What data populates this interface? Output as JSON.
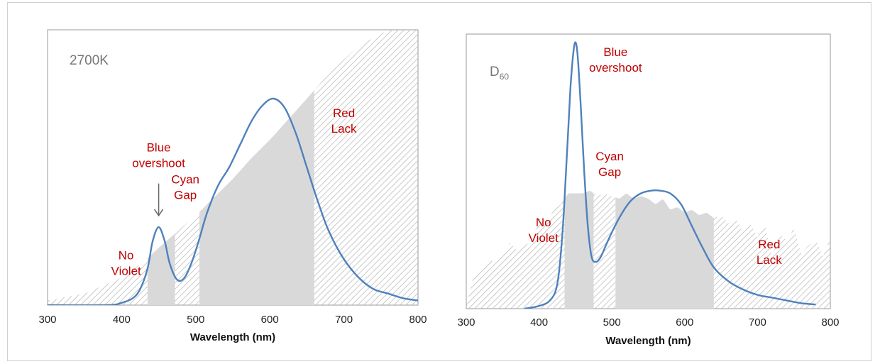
{
  "colors": {
    "curve": "#4f81bd",
    "fill": "#d9d9d9",
    "hatch": "#bcbcbc",
    "annotation": "#c00000",
    "title": "#808080",
    "arrow": "#666666"
  },
  "chart_data": [
    {
      "type": "area",
      "title": "2700K",
      "subtitle": "",
      "xlabel": "Wavelength (nm)",
      "ylabel": "",
      "xlim": [
        300,
        800
      ],
      "ylim": [
        0,
        1.2
      ],
      "xticks": [
        "300",
        "400",
        "500",
        "600",
        "700",
        "800"
      ],
      "grid": false,
      "reference_spectrum": {
        "x": [
          300,
          350,
          400,
          430,
          450,
          475,
          500,
          525,
          550,
          575,
          600,
          625,
          650,
          680,
          720,
          760,
          800
        ],
        "y": [
          0.02,
          0.05,
          0.12,
          0.19,
          0.25,
          0.32,
          0.39,
          0.47,
          0.55,
          0.64,
          0.72,
          0.81,
          0.9,
          1.01,
          1.13,
          1.2,
          1.2
        ]
      },
      "test_spectrum": {
        "x": [
          300,
          380,
          400,
          415,
          425,
          435,
          442,
          450,
          458,
          465,
          475,
          485,
          495,
          505,
          515,
          530,
          545,
          560,
          575,
          590,
          605,
          620,
          635,
          650,
          665,
          680,
          700,
          720,
          740,
          760,
          780,
          800
        ],
        "y": [
          0.0,
          0.0,
          0.01,
          0.03,
          0.07,
          0.16,
          0.28,
          0.34,
          0.28,
          0.18,
          0.11,
          0.12,
          0.19,
          0.29,
          0.4,
          0.52,
          0.6,
          0.7,
          0.8,
          0.87,
          0.9,
          0.86,
          0.75,
          0.6,
          0.45,
          0.32,
          0.2,
          0.12,
          0.07,
          0.05,
          0.03,
          0.02
        ]
      },
      "shaded_regions": [
        {
          "from": 300,
          "to": 435,
          "style": "hatched"
        },
        {
          "from": 435,
          "to": 472,
          "style": "solid"
        },
        {
          "from": 472,
          "to": 505,
          "style": "hatched"
        },
        {
          "from": 505,
          "to": 660,
          "style": "solid"
        },
        {
          "from": 660,
          "to": 800,
          "style": "hatched"
        }
      ],
      "annotations": [
        {
          "lines": [
            "Blue",
            "overshoot"
          ],
          "x": 450,
          "y": 0.67
        },
        {
          "lines": [
            "Cyan",
            "Gap"
          ],
          "x": 486,
          "y": 0.53
        },
        {
          "lines": [
            "No",
            "Violet"
          ],
          "x": 406,
          "y": 0.2
        },
        {
          "lines": [
            "Red",
            "Lack"
          ],
          "x": 700,
          "y": 0.82
        }
      ],
      "arrow": {
        "from": [
          450,
          0.53
        ],
        "to": [
          450,
          0.39
        ]
      }
    },
    {
      "type": "area",
      "title": "D",
      "title_subscript": "60",
      "subtitle": "",
      "xlabel": "Wavelength (nm)",
      "ylabel": "",
      "xlim": [
        300,
        800
      ],
      "ylim": [
        0,
        1.0
      ],
      "xticks": [
        "300",
        "400",
        "500",
        "600",
        "700",
        "800"
      ],
      "grid": false,
      "reference_spectrum": {
        "x": [
          300,
          310,
          320,
          330,
          340,
          350,
          360,
          370,
          380,
          390,
          400,
          410,
          420,
          430,
          440,
          450,
          460,
          470,
          480,
          490,
          500,
          510,
          520,
          530,
          540,
          550,
          560,
          570,
          580,
          590,
          600,
          610,
          620,
          630,
          640,
          650,
          660,
          670,
          680,
          690,
          700,
          710,
          720,
          730,
          740,
          750,
          760,
          770,
          780,
          790,
          800
        ],
        "y": [
          0.01,
          0.12,
          0.14,
          0.18,
          0.17,
          0.2,
          0.24,
          0.21,
          0.24,
          0.23,
          0.33,
          0.31,
          0.36,
          0.38,
          0.42,
          0.42,
          0.42,
          0.43,
          0.41,
          0.42,
          0.41,
          0.4,
          0.42,
          0.4,
          0.41,
          0.4,
          0.38,
          0.4,
          0.36,
          0.37,
          0.35,
          0.36,
          0.34,
          0.35,
          0.33,
          0.34,
          0.31,
          0.33,
          0.28,
          0.31,
          0.26,
          0.31,
          0.19,
          0.27,
          0.25,
          0.29,
          0.2,
          0.23,
          0.25,
          0.19,
          0.26
        ]
      },
      "test_spectrum": {
        "x": [
          380,
          400,
          415,
          425,
          432,
          438,
          443,
          447,
          450,
          453,
          457,
          462,
          467,
          472,
          478,
          485,
          495,
          510,
          525,
          540,
          555,
          565,
          580,
          595,
          610,
          625,
          640,
          660,
          680,
          700,
          720,
          740,
          760,
          780
        ],
        "y": [
          0.0,
          0.01,
          0.03,
          0.09,
          0.27,
          0.55,
          0.8,
          0.93,
          0.97,
          0.92,
          0.75,
          0.5,
          0.3,
          0.19,
          0.17,
          0.19,
          0.25,
          0.33,
          0.39,
          0.42,
          0.43,
          0.43,
          0.42,
          0.38,
          0.3,
          0.22,
          0.15,
          0.1,
          0.07,
          0.05,
          0.04,
          0.03,
          0.02,
          0.015
        ]
      },
      "shaded_regions": [
        {
          "from": 300,
          "to": 435,
          "style": "hatched"
        },
        {
          "from": 435,
          "to": 475,
          "style": "solid"
        },
        {
          "from": 475,
          "to": 505,
          "style": "hatched"
        },
        {
          "from": 505,
          "to": 640,
          "style": "solid"
        },
        {
          "from": 640,
          "to": 800,
          "style": "hatched"
        }
      ],
      "annotations": [
        {
          "lines": [
            "Blue",
            "overshoot"
          ],
          "x": 505,
          "y": 0.92
        },
        {
          "lines": [
            "Cyan",
            "Gap"
          ],
          "x": 497,
          "y": 0.54
        },
        {
          "lines": [
            "No",
            "Violet"
          ],
          "x": 406,
          "y": 0.3
        },
        {
          "lines": [
            "Red",
            "Lack"
          ],
          "x": 716,
          "y": 0.22
        }
      ]
    }
  ]
}
